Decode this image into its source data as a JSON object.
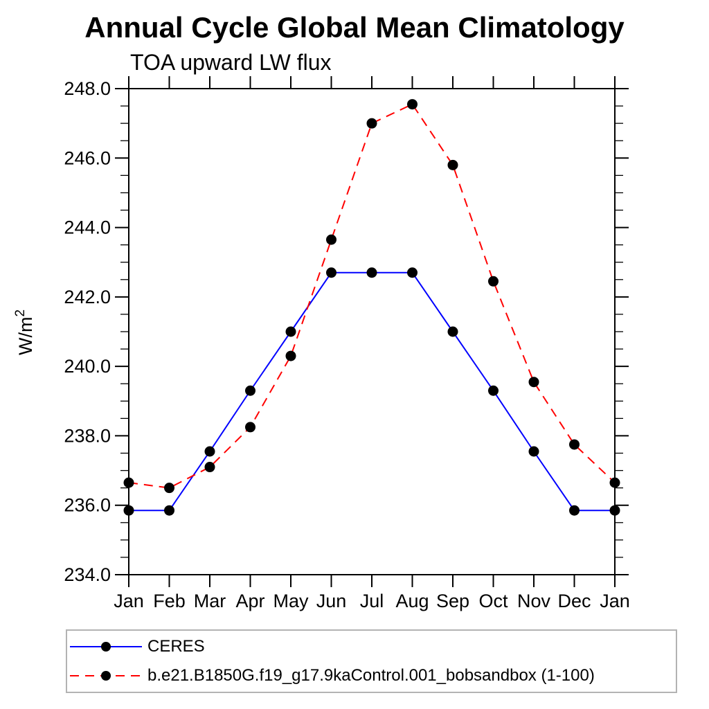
{
  "chart_data": {
    "type": "line",
    "title": "Annual Cycle Global Mean Climatology",
    "subtitle": "TOA upward LW flux",
    "ylabel": "W/m",
    "ylabel_sup": "2",
    "categories": [
      "Jan",
      "Feb",
      "Mar",
      "Apr",
      "May",
      "Jun",
      "Jul",
      "Aug",
      "Sep",
      "Oct",
      "Nov",
      "Dec",
      "Jan"
    ],
    "ylim": [
      234.0,
      248.0
    ],
    "ytick_interval": 2.0,
    "yminor_interval": 0.5,
    "ytick_labels": [
      "234.0",
      "236.0",
      "238.0",
      "240.0",
      "242.0",
      "244.0",
      "246.0",
      "248.0"
    ],
    "grid": false,
    "legend_position": "bottom-left",
    "series": [
      {
        "name": "CERES",
        "line_color": "#0000ff",
        "line_style": "solid",
        "marker": "filled-circle",
        "marker_color": "#000000",
        "values": [
          235.85,
          235.85,
          237.55,
          239.3,
          241.0,
          242.7,
          242.7,
          242.7,
          241.0,
          239.3,
          237.55,
          235.85,
          235.85
        ]
      },
      {
        "name": "b.e21.B1850G.f19_g17.9kaControl.001_bobsandbox (1-100)",
        "line_color": "#ff0000",
        "line_style": "dashed",
        "marker": "filled-circle",
        "marker_color": "#000000",
        "values": [
          236.65,
          236.5,
          237.1,
          238.25,
          240.3,
          243.65,
          247.0,
          247.55,
          245.8,
          242.45,
          239.55,
          237.75,
          236.65
        ]
      }
    ]
  },
  "colors": {
    "background": "#ffffff",
    "axis": "#000000",
    "text": "#000000",
    "legend_border": "#b3b3b3"
  }
}
